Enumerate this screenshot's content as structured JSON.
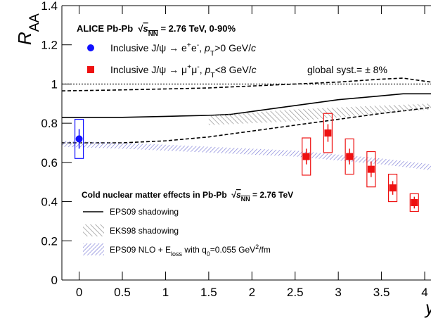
{
  "chart_data": {
    "type": "scatter",
    "header": [
      {
        "t": "ALICE Pb-Pb  "
      },
      {
        "t": "√"
      },
      {
        "t": "s",
        "s": "it over"
      },
      {
        "t": "NN",
        "s": "sub over"
      },
      {
        "t": " = 2.76 TeV, 0-90%"
      }
    ],
    "ylabel": [
      {
        "t": "R",
        "s": "it"
      },
      {
        "t": "AA",
        "s": "sub"
      }
    ],
    "xlabel": [
      {
        "t": "y",
        "s": "it"
      }
    ],
    "xlim": [
      -0.2,
      4.073
    ],
    "ylim": [
      0,
      1.4
    ],
    "xticks": [
      0,
      0.5,
      1,
      1.5,
      2,
      2.5,
      3,
      3.5,
      4
    ],
    "yticks": [
      0,
      0.2,
      0.4,
      0.6,
      0.8,
      1,
      1.2,
      1.4
    ],
    "reference_line": 1,
    "global_syst": "global syst.= ± 8%",
    "series": [
      {
        "name": [
          {
            "t": "Inclusive J/ψ → e"
          },
          {
            "t": "+",
            "s": "sup"
          },
          {
            "t": "e"
          },
          {
            "t": "-",
            "s": "sup"
          },
          {
            "t": ", "
          },
          {
            "t": "p",
            "s": "it"
          },
          {
            "t": "T",
            "s": "sub"
          },
          {
            "t": ">0 GeV/"
          },
          {
            "t": "c",
            "s": "it"
          }
        ],
        "color": "#1010ff",
        "marker": "circle",
        "x": [
          0
        ],
        "values": [
          0.72
        ],
        "stat": [
          0.05
        ],
        "syst": [
          0.1
        ]
      },
      {
        "name": [
          {
            "t": "Inclusive J/ψ → μ"
          },
          {
            "t": "+",
            "s": "sup"
          },
          {
            "t": "μ"
          },
          {
            "t": "-",
            "s": "sup"
          },
          {
            "t": ", "
          },
          {
            "t": "p",
            "s": "it"
          },
          {
            "t": "T",
            "s": "sub"
          },
          {
            "t": "<8 GeV/"
          },
          {
            "t": "c",
            "s": "it"
          }
        ],
        "color": "#ee1111",
        "marker": "square",
        "x": [
          2.63,
          2.88,
          3.13,
          3.38,
          3.63,
          3.88
        ],
        "values": [
          0.63,
          0.75,
          0.63,
          0.565,
          0.47,
          0.395
        ],
        "stat": [
          0.04,
          0.045,
          0.04,
          0.04,
          0.035,
          0.03
        ],
        "syst": [
          0.095,
          0.1,
          0.09,
          0.09,
          0.07,
          0.045
        ]
      }
    ],
    "models_title": [
      {
        "t": "Cold nuclear matter effects in Pb-Pb  "
      },
      {
        "t": "√"
      },
      {
        "t": "s",
        "s": "it over"
      },
      {
        "t": "NN",
        "s": "sub over"
      },
      {
        "t": " = 2.76 TeV"
      }
    ],
    "models": [
      {
        "name": [
          {
            "t": "EPS09 shadowing"
          }
        ],
        "style": "line",
        "curves": [
          {
            "dash": "solid",
            "x": [
              -0.2,
              0,
              0.5,
              1,
              1.5,
              1.75,
              2,
              2.5,
              3,
              3.5,
              3.75,
              4.073
            ],
            "values": [
              0.83,
              0.83,
              0.83,
              0.835,
              0.84,
              0.845,
              0.86,
              0.89,
              0.92,
              0.94,
              0.95,
              0.95
            ]
          },
          {
            "dash": "dashed",
            "x": [
              -0.2,
              0.5,
              1,
              1.5,
              2,
              2.5,
              3,
              3.5,
              3.75,
              4.073
            ],
            "values": [
              0.965,
              0.97,
              0.975,
              0.98,
              0.99,
              1.0,
              1.01,
              1.025,
              1.03,
              1.01
            ]
          },
          {
            "dash": "dashed",
            "x": [
              -0.2,
              0.5,
              1,
              1.5,
              2,
              2.5,
              3,
              3.5,
              4.073
            ],
            "values": [
              0.7,
              0.7,
              0.71,
              0.73,
              0.76,
              0.79,
              0.82,
              0.85,
              0.88
            ]
          }
        ]
      },
      {
        "name": [
          {
            "t": "EKS98 shadowing"
          }
        ],
        "style": "gray-hatch",
        "x": [
          1.5,
          2,
          2.5,
          3,
          3.5,
          4.073
        ],
        "low": [
          0.79,
          0.8,
          0.81,
          0.83,
          0.85,
          0.87
        ],
        "high": [
          0.84,
          0.855,
          0.87,
          0.88,
          0.89,
          0.9
        ]
      },
      {
        "name": [
          {
            "t": "EPS09 NLO + E"
          },
          {
            "t": "loss",
            "s": "sub"
          },
          {
            "t": " with q"
          },
          {
            "t": "0",
            "s": "sub"
          },
          {
            "t": "=0.055 GeV"
          },
          {
            "t": "2",
            "s": "sup"
          },
          {
            "t": "/fm"
          }
        ],
        "style": "blue-hatch",
        "x": [
          -0.2,
          0.5,
          1,
          1.5,
          2,
          2.5,
          3,
          3.5,
          4.073
        ],
        "low": [
          0.68,
          0.67,
          0.66,
          0.65,
          0.64,
          0.63,
          0.61,
          0.59,
          0.56
        ],
        "high": [
          0.71,
          0.7,
          0.69,
          0.68,
          0.67,
          0.66,
          0.64,
          0.62,
          0.59
        ]
      }
    ]
  }
}
